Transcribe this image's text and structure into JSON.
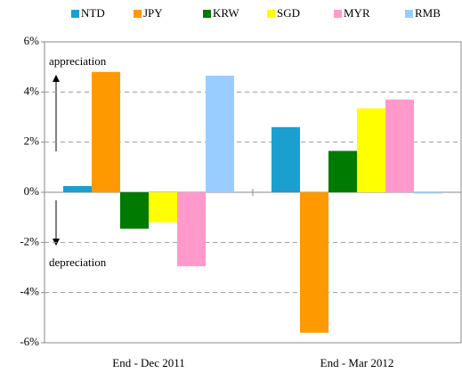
{
  "chart_data": {
    "type": "bar",
    "categories": [
      "End - Dec 2011",
      "End - Mar 2012"
    ],
    "series": [
      {
        "name": "NTD",
        "color": "#1a9fcf",
        "values": [
          0.25,
          2.6
        ]
      },
      {
        "name": "JPY",
        "color": "#ff9900",
        "values": [
          4.8,
          -5.6
        ]
      },
      {
        "name": "KRW",
        "color": "#007a00",
        "values": [
          -1.45,
          1.65
        ]
      },
      {
        "name": "SGD",
        "color": "#ffff00",
        "values": [
          -1.2,
          3.35
        ]
      },
      {
        "name": "MYR",
        "color": "#ff99cc",
        "values": [
          -2.95,
          3.7
        ]
      },
      {
        "name": "RMB",
        "color": "#99ccff",
        "values": [
          4.65,
          -0.05
        ]
      }
    ],
    "annotations": [
      "appreciation",
      "depreciation"
    ],
    "ylim": [
      -6,
      6
    ],
    "yticks": [
      {
        "value": -6,
        "label": "-6%"
      },
      {
        "value": -4,
        "label": "-4%"
      },
      {
        "value": -2,
        "label": "-2%"
      },
      {
        "value": 0,
        "label": "0%"
      },
      {
        "value": 2,
        "label": "2%"
      },
      {
        "value": 4,
        "label": "4%"
      },
      {
        "value": 6,
        "label": "6%"
      }
    ],
    "grid": true
  }
}
